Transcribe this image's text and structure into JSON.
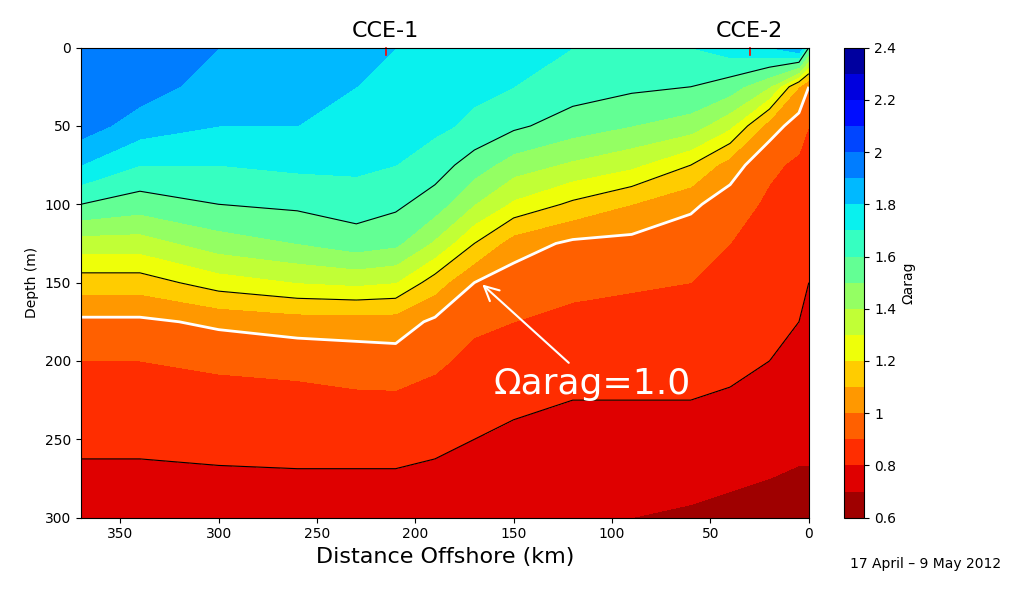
{
  "chart_data": {
    "type": "contour",
    "xlabel": "Distance Offshore (km)",
    "ylabel": "Depth (m)",
    "colorbar_label": "Ωarag",
    "annotation": "Ωarag=1.0",
    "note": "17 April – 9 May 2012",
    "stations": [
      {
        "name": "CCE-1",
        "x": 215
      },
      {
        "name": "CCE-2",
        "x": 30
      }
    ],
    "x": [
      370,
      340,
      300,
      260,
      230,
      210,
      190,
      170,
      150,
      120,
      90,
      60,
      40,
      20,
      5,
      0
    ],
    "depth": [
      0,
      25,
      50,
      75,
      100,
      125,
      150,
      175,
      200,
      225,
      250,
      275,
      300
    ],
    "profiles": [
      [
        2.0,
        2.0,
        1.95,
        1.8,
        1.6,
        1.35,
        1.15,
        0.98,
        0.9,
        0.85,
        0.82,
        0.78,
        0.76
      ],
      [
        2.0,
        1.95,
        1.85,
        1.7,
        1.55,
        1.35,
        1.15,
        0.98,
        0.9,
        0.85,
        0.82,
        0.78,
        0.76
      ],
      [
        1.9,
        1.85,
        1.8,
        1.7,
        1.6,
        1.45,
        1.25,
        1.02,
        0.92,
        0.86,
        0.82,
        0.79,
        0.76
      ],
      [
        1.9,
        1.85,
        1.8,
        1.72,
        1.62,
        1.5,
        1.3,
        1.05,
        0.93,
        0.87,
        0.83,
        0.79,
        0.76
      ],
      [
        1.85,
        1.8,
        1.78,
        1.72,
        1.65,
        1.55,
        1.32,
        1.05,
        0.95,
        0.88,
        0.83,
        0.79,
        0.76
      ],
      [
        1.8,
        1.78,
        1.75,
        1.7,
        1.62,
        1.52,
        1.3,
        1.05,
        0.96,
        0.88,
        0.83,
        0.79,
        0.76
      ],
      [
        1.8,
        1.75,
        1.72,
        1.65,
        1.55,
        1.38,
        1.15,
        0.98,
        0.92,
        0.86,
        0.82,
        0.78,
        0.75
      ],
      [
        1.75,
        1.72,
        1.68,
        1.55,
        1.4,
        1.2,
        1.0,
        0.92,
        0.87,
        0.84,
        0.8,
        0.77,
        0.74
      ],
      [
        1.75,
        1.7,
        1.62,
        1.45,
        1.28,
        1.05,
        0.95,
        0.9,
        0.86,
        0.82,
        0.78,
        0.75,
        0.72
      ],
      [
        1.7,
        1.65,
        1.55,
        1.38,
        1.18,
        0.98,
        0.92,
        0.88,
        0.84,
        0.8,
        0.76,
        0.72,
        0.7
      ],
      [
        1.7,
        1.62,
        1.5,
        1.32,
        1.1,
        0.97,
        0.91,
        0.87,
        0.84,
        0.8,
        0.76,
        0.72,
        0.7
      ],
      [
        1.7,
        1.6,
        1.45,
        1.2,
        1.02,
        0.94,
        0.9,
        0.86,
        0.83,
        0.8,
        0.76,
        0.72,
        0.69
      ],
      [
        1.75,
        1.55,
        1.32,
        1.05,
        0.95,
        0.9,
        0.88,
        0.85,
        0.82,
        0.79,
        0.75,
        0.71,
        0.68
      ],
      [
        1.8,
        1.4,
        1.05,
        0.92,
        0.88,
        0.86,
        0.84,
        0.82,
        0.8,
        0.77,
        0.73,
        0.7,
        0.68
      ],
      [
        1.9,
        1.1,
        0.95,
        0.88,
        0.85,
        0.83,
        0.81,
        0.8,
        0.78,
        0.75,
        0.72,
        0.69,
        0.67
      ],
      [
        1.6,
        1.0,
        0.9,
        0.86,
        0.83,
        0.81,
        0.8,
        0.78,
        0.76,
        0.74,
        0.72,
        0.69,
        0.67
      ]
    ],
    "levels": [
      0.6,
      0.7,
      0.8,
      0.9,
      1.0,
      1.1,
      1.2,
      1.3,
      1.4,
      1.5,
      1.6,
      1.7,
      1.8,
      1.9,
      2.0,
      2.1,
      2.2,
      2.3,
      2.4
    ],
    "contour_lines": [
      0.8,
      1.2,
      1.6
    ],
    "highlight_level": 1.0,
    "xlim": [
      370,
      0
    ],
    "ylim": [
      300,
      0
    ],
    "xticks": [
      350,
      300,
      250,
      200,
      150,
      100,
      50,
      0
    ],
    "yticks": [
      0,
      50,
      100,
      150,
      200,
      250,
      300
    ],
    "colorbar_lim": [
      0.6,
      2.4
    ],
    "colorbar_ticks": [
      0.6,
      0.8,
      1,
      1.2,
      1.4,
      1.6,
      1.8,
      2,
      2.2,
      2.4
    ]
  }
}
